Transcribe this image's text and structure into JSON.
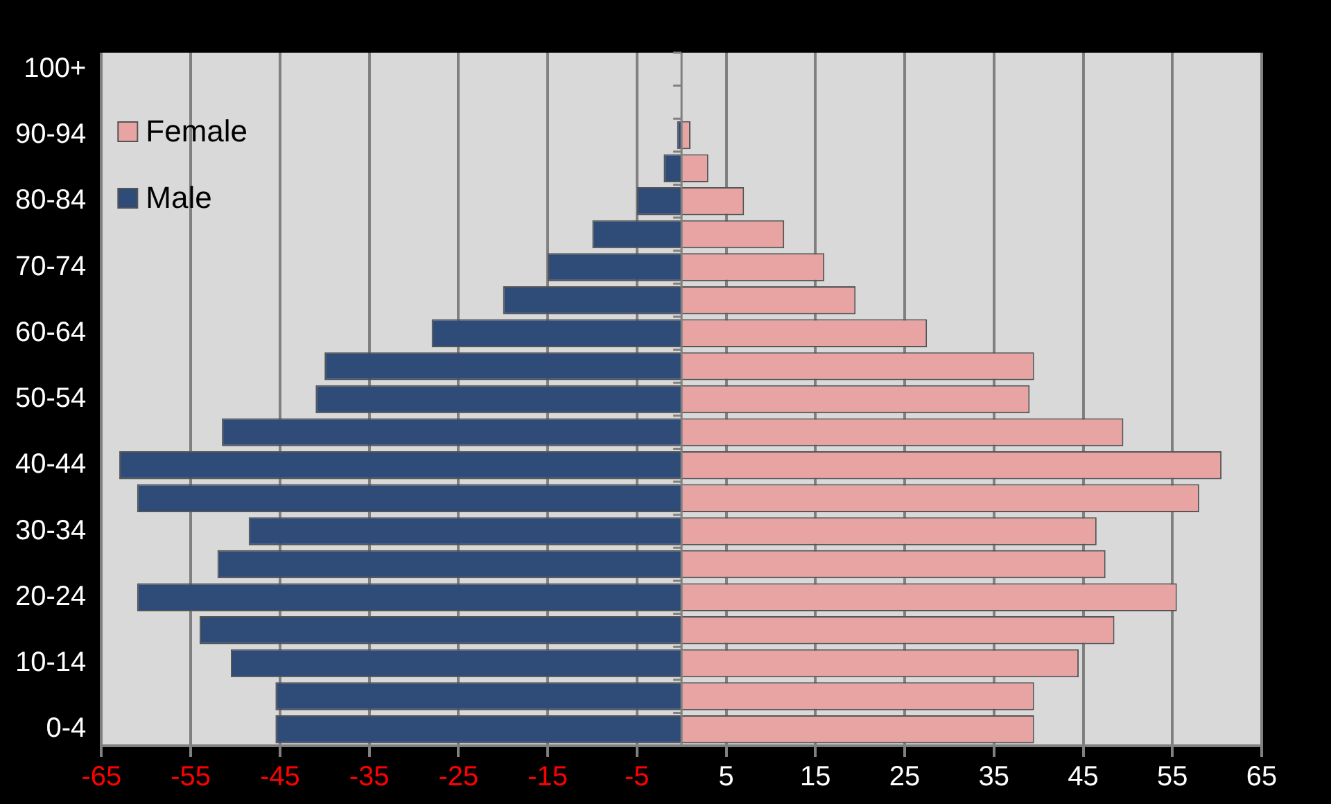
{
  "chart_data": {
    "type": "bar",
    "orientation": "horizontal",
    "stacked": true,
    "categories": [
      "100+",
      null,
      "90-94",
      null,
      "80-84",
      null,
      "70-74",
      null,
      "60-64",
      null,
      "50-54",
      null,
      "40-44",
      null,
      "30-34",
      null,
      "20-24",
      null,
      "10-14",
      null,
      "0-4"
    ],
    "series": [
      {
        "name": "Female",
        "color": "#e8a3a3",
        "values": [
          0,
          0,
          1,
          3,
          7,
          11.5,
          16,
          19.5,
          27.5,
          39.5,
          39,
          49.5,
          60.5,
          58,
          46.5,
          47.5,
          55.5,
          48.5,
          44.5,
          39.5,
          39.5
        ]
      },
      {
        "name": "Male",
        "color": "#2f4b78",
        "values": [
          0,
          0,
          -0.5,
          -2,
          -5,
          -10,
          -15,
          -20,
          -28,
          -40,
          -41,
          -51.5,
          -63,
          -61,
          -48.5,
          -52,
          -61,
          -54,
          -50.5,
          -45.5,
          -45.5
        ]
      }
    ],
    "xlim": [
      -65,
      65
    ],
    "xticks": [
      -65,
      -55,
      -45,
      -35,
      -25,
      -15,
      -5,
      5,
      15,
      25,
      35,
      45,
      55,
      65
    ],
    "grid": "x",
    "legend": "top left"
  }
}
